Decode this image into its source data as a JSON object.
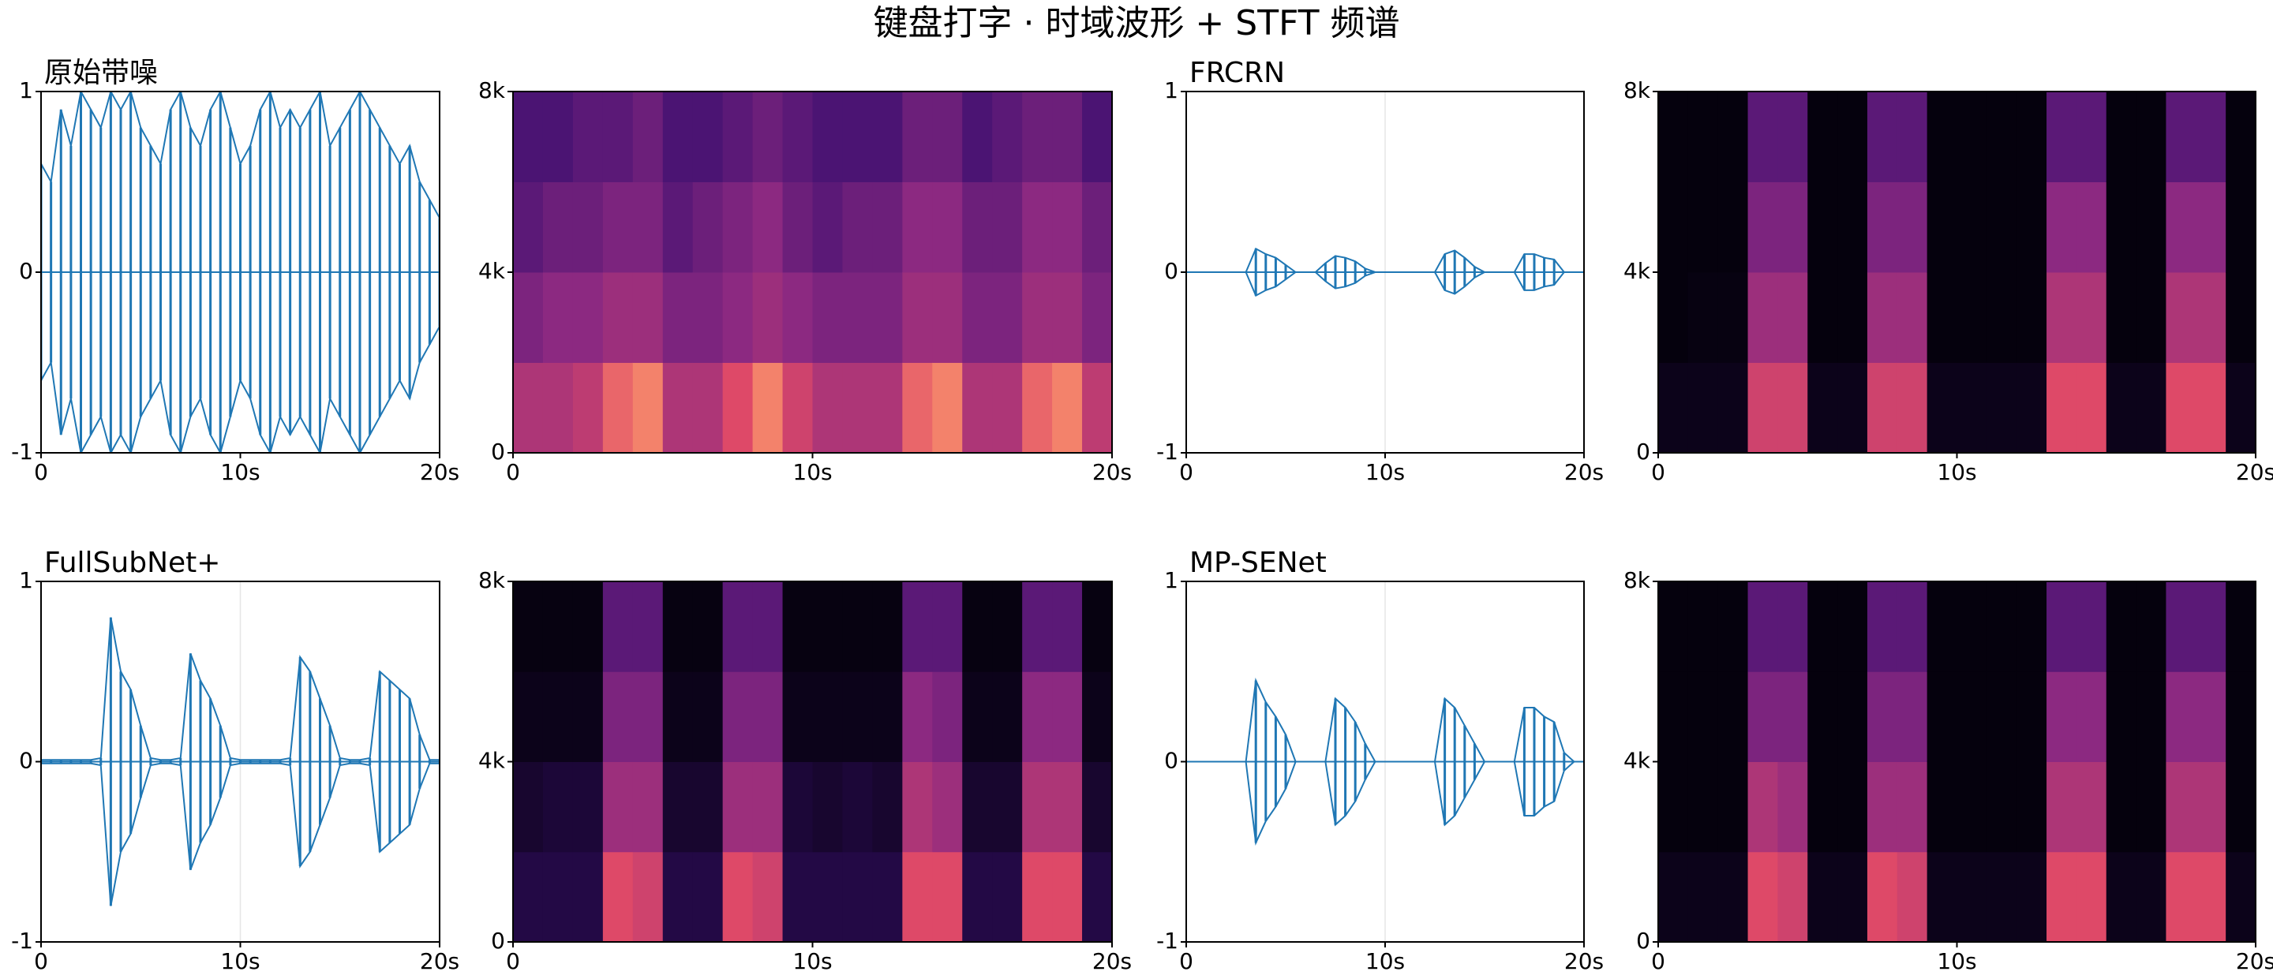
{
  "title": "键盘打字 · 时域波形 + STFT 频谱",
  "chart_data": [
    {
      "type": "waveform",
      "title": "原始带噪",
      "color": "#1f77b4",
      "xgrid": false,
      "x": [
        0,
        0.5,
        1,
        1.5,
        2,
        2.5,
        3,
        3.5,
        4,
        4.5,
        5,
        5.5,
        6,
        6.5,
        7,
        7.5,
        8,
        8.5,
        9,
        9.5,
        10,
        10.5,
        11,
        11.5,
        12,
        12.5,
        13,
        13.5,
        14,
        14.5,
        15,
        15.5,
        16,
        16.5,
        17,
        17.5,
        18,
        18.5,
        19,
        19.5,
        20
      ],
      "values": [
        0.6,
        0.5,
        0.9,
        0.7,
        1,
        0.9,
        0.8,
        1,
        0.9,
        1,
        0.8,
        0.7,
        0.6,
        0.9,
        1,
        0.8,
        0.7,
        0.9,
        1,
        0.8,
        0.6,
        0.7,
        0.9,
        1,
        0.8,
        0.9,
        0.8,
        0.9,
        1,
        0.7,
        0.8,
        0.9,
        1,
        0.9,
        0.8,
        0.7,
        0.6,
        0.7,
        0.5,
        0.4,
        0.3
      ],
      "xlim": [
        0,
        20
      ],
      "xticks": [
        0,
        {
          "value": 10,
          "label": "10s"
        },
        {
          "value": 20,
          "label": "20s"
        }
      ],
      "ylim": [
        -1,
        1
      ],
      "yticks": [
        -1,
        0,
        1
      ]
    },
    {
      "type": "heatmap",
      "colormap": "magma",
      "xbins": [
        0,
        1,
        2,
        3,
        4,
        5,
        6,
        7,
        8,
        9,
        10,
        11,
        12,
        13,
        14,
        15,
        16,
        17,
        18,
        19,
        20
      ],
      "ybins": [
        0,
        2000,
        4000,
        6000,
        8000
      ],
      "values": [
        [
          0.6,
          0.45,
          0.35,
          0.3
        ],
        [
          0.6,
          0.5,
          0.4,
          0.3
        ],
        [
          0.65,
          0.5,
          0.4,
          0.35
        ],
        [
          0.8,
          0.55,
          0.45,
          0.35
        ],
        [
          0.85,
          0.55,
          0.45,
          0.4
        ],
        [
          0.6,
          0.45,
          0.35,
          0.3
        ],
        [
          0.6,
          0.45,
          0.4,
          0.3
        ],
        [
          0.75,
          0.5,
          0.45,
          0.35
        ],
        [
          0.85,
          0.55,
          0.5,
          0.4
        ],
        [
          0.7,
          0.5,
          0.4,
          0.35
        ],
        [
          0.6,
          0.45,
          0.35,
          0.3
        ],
        [
          0.6,
          0.45,
          0.4,
          0.3
        ],
        [
          0.6,
          0.45,
          0.4,
          0.3
        ],
        [
          0.8,
          0.55,
          0.5,
          0.4
        ],
        [
          0.85,
          0.55,
          0.5,
          0.4
        ],
        [
          0.6,
          0.45,
          0.4,
          0.3
        ],
        [
          0.6,
          0.45,
          0.4,
          0.35
        ],
        [
          0.8,
          0.55,
          0.5,
          0.4
        ],
        [
          0.85,
          0.55,
          0.5,
          0.4
        ],
        [
          0.65,
          0.45,
          0.4,
          0.3
        ]
      ],
      "xlim": [
        0,
        20
      ],
      "xticks": [
        0,
        {
          "value": 10,
          "label": "10s"
        },
        {
          "value": 20,
          "label": "20s"
        }
      ],
      "ylim": [
        0,
        8000
      ],
      "yticks": [
        0,
        {
          "value": 4000,
          "label": "4k"
        },
        {
          "value": 8000,
          "label": "8k"
        }
      ]
    },
    {
      "type": "waveform",
      "title": "FRCRN",
      "color": "#1f77b4",
      "xgrid": true,
      "x": [
        0,
        0.5,
        1,
        1.5,
        2,
        2.5,
        3,
        3.5,
        4,
        4.5,
        5,
        5.5,
        6,
        6.5,
        7,
        7.5,
        8,
        8.5,
        9,
        9.5,
        10,
        10.5,
        11,
        11.5,
        12,
        12.5,
        13,
        13.5,
        14,
        14.5,
        15,
        15.5,
        16,
        16.5,
        17,
        17.5,
        18,
        18.5,
        19,
        19.5,
        20
      ],
      "values": [
        0,
        0,
        0,
        0,
        0,
        0,
        0,
        0.13,
        0.1,
        0.08,
        0.04,
        0,
        0,
        0,
        0.05,
        0.09,
        0.08,
        0.06,
        0.02,
        0,
        0,
        0,
        0,
        0,
        0,
        0,
        0.1,
        0.12,
        0.08,
        0.03,
        0,
        0,
        0,
        0,
        0.1,
        0.1,
        0.08,
        0.07,
        0,
        0,
        0
      ],
      "xlim": [
        0,
        20
      ],
      "xticks": [
        0,
        {
          "value": 10,
          "label": "10s"
        },
        {
          "value": 20,
          "label": "20s"
        }
      ],
      "ylim": [
        -1,
        1
      ],
      "yticks": [
        -1,
        0,
        1
      ]
    },
    {
      "type": "heatmap",
      "colormap": "magma",
      "xbins": [
        0,
        1,
        2,
        3,
        4,
        5,
        6,
        7,
        8,
        9,
        10,
        11,
        12,
        13,
        14,
        15,
        16,
        17,
        18,
        19,
        20
      ],
      "ybins": [
        0,
        2000,
        4000,
        6000,
        8000
      ],
      "values": [
        [
          0.05,
          0.02,
          0.02,
          0.02
        ],
        [
          0.05,
          0.03,
          0.02,
          0.02
        ],
        [
          0.05,
          0.03,
          0.02,
          0.02
        ],
        [
          0.7,
          0.55,
          0.45,
          0.35
        ],
        [
          0.7,
          0.55,
          0.45,
          0.35
        ],
        [
          0.05,
          0.02,
          0.02,
          0.02
        ],
        [
          0.05,
          0.02,
          0.02,
          0.02
        ],
        [
          0.7,
          0.55,
          0.45,
          0.35
        ],
        [
          0.7,
          0.55,
          0.45,
          0.35
        ],
        [
          0.05,
          0.02,
          0.02,
          0.02
        ],
        [
          0.05,
          0.02,
          0.02,
          0.02
        ],
        [
          0.05,
          0.02,
          0.02,
          0.02
        ],
        [
          0.05,
          0.02,
          0.02,
          0.02
        ],
        [
          0.75,
          0.6,
          0.5,
          0.35
        ],
        [
          0.75,
          0.6,
          0.5,
          0.35
        ],
        [
          0.05,
          0.02,
          0.02,
          0.02
        ],
        [
          0.05,
          0.02,
          0.02,
          0.02
        ],
        [
          0.75,
          0.6,
          0.5,
          0.35
        ],
        [
          0.75,
          0.6,
          0.5,
          0.35
        ],
        [
          0.05,
          0.02,
          0.02,
          0.02
        ]
      ],
      "xlim": [
        0,
        20
      ],
      "xticks": [
        0,
        {
          "value": 10,
          "label": "10s"
        },
        {
          "value": 20,
          "label": "20s"
        }
      ],
      "ylim": [
        0,
        8000
      ],
      "yticks": [
        0,
        {
          "value": 4000,
          "label": "4k"
        },
        {
          "value": 8000,
          "label": "8k"
        }
      ]
    },
    {
      "type": "waveform",
      "title": "FullSubNet+",
      "color": "#1f77b4",
      "xgrid": true,
      "x": [
        0,
        0.5,
        1,
        1.5,
        2,
        2.5,
        3,
        3.5,
        4,
        4.5,
        5,
        5.5,
        6,
        6.5,
        7,
        7.5,
        8,
        8.5,
        9,
        9.5,
        10,
        10.5,
        11,
        11.5,
        12,
        12.5,
        13,
        13.5,
        14,
        14.5,
        15,
        15.5,
        16,
        16.5,
        17,
        17.5,
        18,
        18.5,
        19,
        19.5,
        20
      ],
      "values": [
        0.01,
        0.01,
        0.01,
        0.01,
        0.01,
        0.01,
        0.02,
        0.8,
        0.5,
        0.4,
        0.2,
        0.02,
        0.01,
        0.01,
        0.02,
        0.6,
        0.45,
        0.35,
        0.2,
        0.02,
        0.01,
        0.01,
        0.01,
        0.01,
        0.01,
        0.02,
        0.58,
        0.5,
        0.35,
        0.2,
        0.02,
        0.01,
        0.01,
        0.02,
        0.5,
        0.45,
        0.4,
        0.35,
        0.15,
        0.01,
        0.01
      ],
      "xlim": [
        0,
        20
      ],
      "xticks": [
        0,
        {
          "value": 10,
          "label": "10s"
        },
        {
          "value": 20,
          "label": "20s"
        }
      ],
      "ylim": [
        -1,
        1
      ],
      "yticks": [
        -1,
        0,
        1
      ]
    },
    {
      "type": "heatmap",
      "colormap": "magma",
      "xbins": [
        0,
        1,
        2,
        3,
        4,
        5,
        6,
        7,
        8,
        9,
        10,
        11,
        12,
        13,
        14,
        15,
        16,
        17,
        18,
        19,
        20
      ],
      "ybins": [
        0,
        2000,
        4000,
        6000,
        8000
      ],
      "values": [
        [
          0.15,
          0.1,
          0.05,
          0.03
        ],
        [
          0.15,
          0.12,
          0.05,
          0.03
        ],
        [
          0.15,
          0.12,
          0.05,
          0.03
        ],
        [
          0.75,
          0.55,
          0.45,
          0.35
        ],
        [
          0.7,
          0.55,
          0.45,
          0.35
        ],
        [
          0.15,
          0.1,
          0.05,
          0.03
        ],
        [
          0.15,
          0.1,
          0.05,
          0.03
        ],
        [
          0.75,
          0.55,
          0.45,
          0.35
        ],
        [
          0.7,
          0.55,
          0.45,
          0.35
        ],
        [
          0.15,
          0.12,
          0.05,
          0.03
        ],
        [
          0.15,
          0.1,
          0.05,
          0.03
        ],
        [
          0.15,
          0.12,
          0.05,
          0.03
        ],
        [
          0.15,
          0.1,
          0.05,
          0.03
        ],
        [
          0.75,
          0.6,
          0.5,
          0.35
        ],
        [
          0.75,
          0.55,
          0.45,
          0.35
        ],
        [
          0.15,
          0.1,
          0.05,
          0.03
        ],
        [
          0.15,
          0.1,
          0.05,
          0.03
        ],
        [
          0.75,
          0.6,
          0.5,
          0.35
        ],
        [
          0.75,
          0.6,
          0.5,
          0.35
        ],
        [
          0.15,
          0.1,
          0.05,
          0.03
        ]
      ],
      "xlim": [
        0,
        20
      ],
      "xticks": [
        0,
        {
          "value": 10,
          "label": "10s"
        },
        {
          "value": 20,
          "label": "20s"
        }
      ],
      "ylim": [
        0,
        8000
      ],
      "yticks": [
        0,
        {
          "value": 4000,
          "label": "4k"
        },
        {
          "value": 8000,
          "label": "8k"
        }
      ]
    },
    {
      "type": "waveform",
      "title": "MP-SENet",
      "color": "#1f77b4",
      "xgrid": true,
      "x": [
        0,
        0.5,
        1,
        1.5,
        2,
        2.5,
        3,
        3.5,
        4,
        4.5,
        5,
        5.5,
        6,
        6.5,
        7,
        7.5,
        8,
        8.5,
        9,
        9.5,
        10,
        10.5,
        11,
        11.5,
        12,
        12.5,
        13,
        13.5,
        14,
        14.5,
        15,
        15.5,
        16,
        16.5,
        17,
        17.5,
        18,
        18.5,
        19,
        19.5,
        20
      ],
      "values": [
        0,
        0,
        0,
        0,
        0,
        0,
        0,
        0.45,
        0.33,
        0.25,
        0.15,
        0,
        0,
        0,
        0,
        0.35,
        0.3,
        0.22,
        0.1,
        0,
        0,
        0,
        0,
        0,
        0,
        0,
        0.35,
        0.3,
        0.2,
        0.1,
        0,
        0,
        0,
        0,
        0.3,
        0.3,
        0.25,
        0.22,
        0.05,
        0,
        0
      ],
      "xlim": [
        0,
        20
      ],
      "xticks": [
        0,
        {
          "value": 10,
          "label": "10s"
        },
        {
          "value": 20,
          "label": "20s"
        }
      ],
      "ylim": [
        -1,
        1
      ],
      "yticks": [
        -1,
        0,
        1
      ]
    },
    {
      "type": "heatmap",
      "colormap": "magma",
      "xbins": [
        0,
        1,
        2,
        3,
        4,
        5,
        6,
        7,
        8,
        9,
        10,
        11,
        12,
        13,
        14,
        15,
        16,
        17,
        18,
        19,
        20
      ],
      "ybins": [
        0,
        2000,
        4000,
        6000,
        8000
      ],
      "values": [
        [
          0.05,
          0.02,
          0.02,
          0.02
        ],
        [
          0.05,
          0.02,
          0.02,
          0.02
        ],
        [
          0.05,
          0.02,
          0.02,
          0.02
        ],
        [
          0.75,
          0.6,
          0.45,
          0.35
        ],
        [
          0.7,
          0.55,
          0.45,
          0.35
        ],
        [
          0.05,
          0.02,
          0.02,
          0.02
        ],
        [
          0.05,
          0.02,
          0.02,
          0.02
        ],
        [
          0.75,
          0.55,
          0.45,
          0.35
        ],
        [
          0.7,
          0.55,
          0.45,
          0.35
        ],
        [
          0.05,
          0.02,
          0.02,
          0.02
        ],
        [
          0.05,
          0.02,
          0.02,
          0.02
        ],
        [
          0.05,
          0.02,
          0.02,
          0.02
        ],
        [
          0.05,
          0.02,
          0.02,
          0.02
        ],
        [
          0.75,
          0.6,
          0.5,
          0.35
        ],
        [
          0.75,
          0.6,
          0.5,
          0.35
        ],
        [
          0.05,
          0.02,
          0.02,
          0.02
        ],
        [
          0.05,
          0.02,
          0.02,
          0.02
        ],
        [
          0.75,
          0.6,
          0.5,
          0.35
        ],
        [
          0.75,
          0.6,
          0.5,
          0.35
        ],
        [
          0.05,
          0.02,
          0.02,
          0.02
        ]
      ],
      "xlim": [
        0,
        20
      ],
      "xticks": [
        0,
        {
          "value": 10,
          "label": "10s"
        },
        {
          "value": 20,
          "label": "20s"
        }
      ],
      "ylim": [
        0,
        8000
      ],
      "yticks": [
        0,
        {
          "value": 4000,
          "label": "4k"
        },
        {
          "value": 8000,
          "label": "8k"
        }
      ]
    }
  ]
}
